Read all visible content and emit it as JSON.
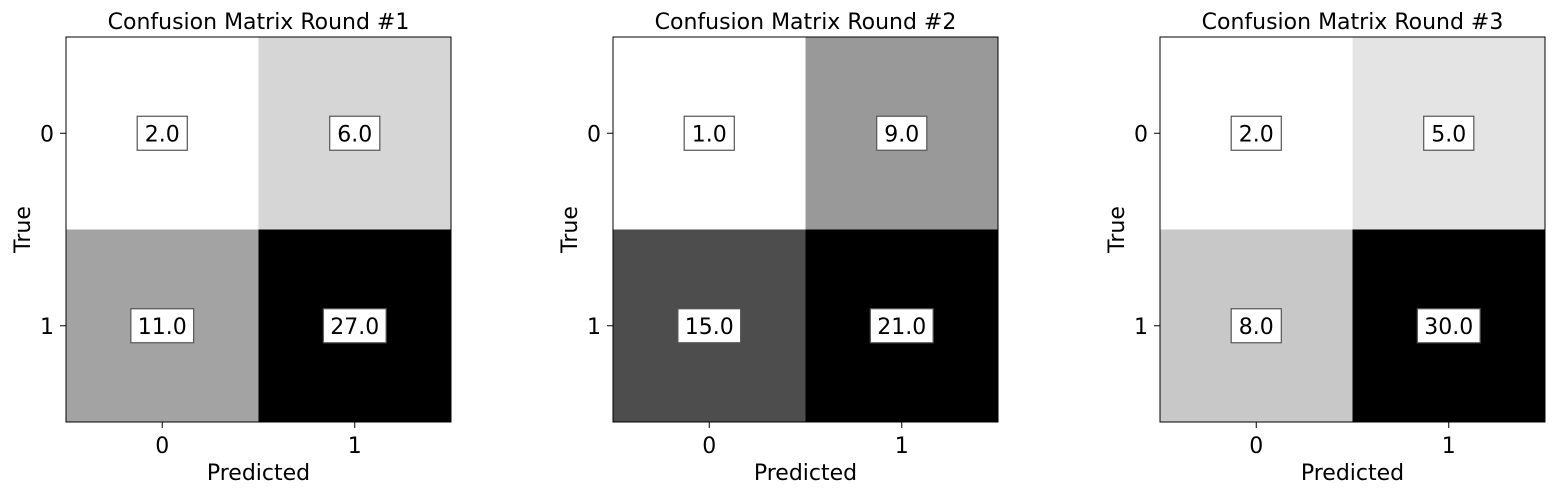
{
  "chart_data": [
    {
      "type": "heatmap",
      "title": "Confusion Matrix Round #1",
      "xlabel": "Predicted",
      "ylabel": "True",
      "x_categories": [
        "0",
        "1"
      ],
      "y_categories": [
        "0",
        "1"
      ],
      "values": [
        [
          2.0,
          6.0
        ],
        [
          11.0,
          27.0
        ]
      ],
      "value_labels": [
        [
          "2.0",
          "6.0"
        ],
        [
          "11.0",
          "27.0"
        ]
      ],
      "colormap": "gray_r",
      "vmin": 2.0,
      "vmax": 27.0
    },
    {
      "type": "heatmap",
      "title": "Confusion Matrix Round #2",
      "xlabel": "Predicted",
      "ylabel": "True",
      "x_categories": [
        "0",
        "1"
      ],
      "y_categories": [
        "0",
        "1"
      ],
      "values": [
        [
          1.0,
          9.0
        ],
        [
          15.0,
          21.0
        ]
      ],
      "value_labels": [
        [
          "1.0",
          "9.0"
        ],
        [
          "15.0",
          "21.0"
        ]
      ],
      "colormap": "gray_r",
      "vmin": 1.0,
      "vmax": 21.0
    },
    {
      "type": "heatmap",
      "title": "Confusion Matrix Round #3",
      "xlabel": "Predicted",
      "ylabel": "True",
      "x_categories": [
        "0",
        "1"
      ],
      "y_categories": [
        "0",
        "1"
      ],
      "values": [
        [
          2.0,
          5.0
        ],
        [
          8.0,
          30.0
        ]
      ],
      "value_labels": [
        [
          "2.0",
          "5.0"
        ],
        [
          "8.0",
          "30.0"
        ]
      ],
      "colormap": "gray_r",
      "vmin": 2.0,
      "vmax": 30.0
    }
  ]
}
